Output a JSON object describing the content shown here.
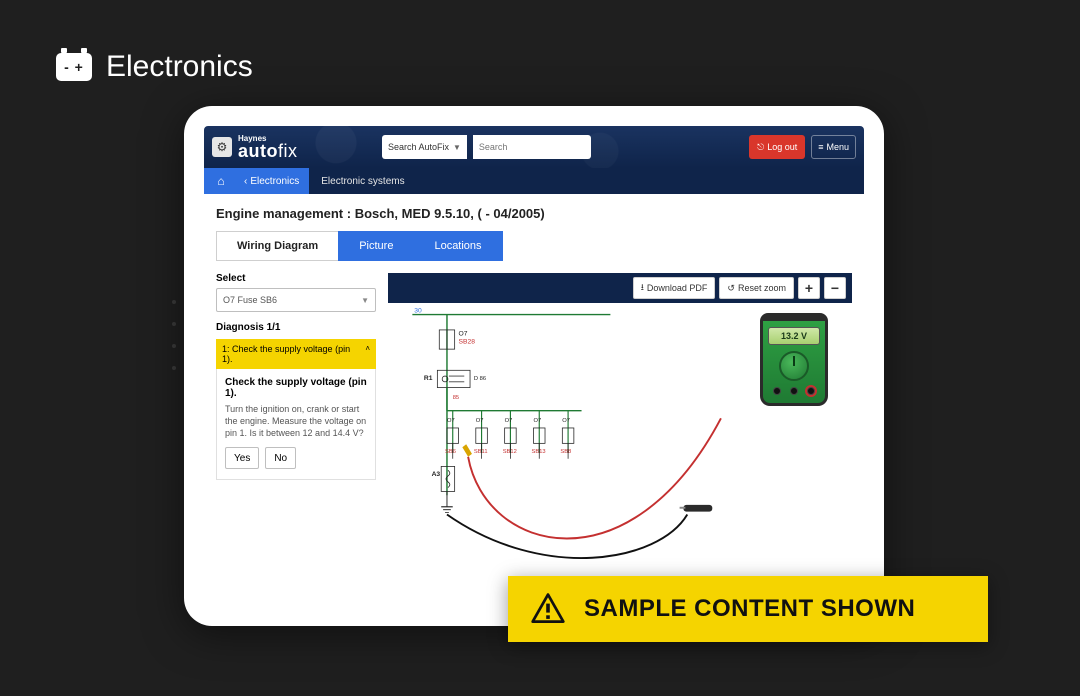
{
  "category": {
    "label": "Electronics",
    "icon_text": "- +"
  },
  "app": {
    "brand_top": "Haynes",
    "brand_main_bold": "auto",
    "brand_main_light": "fix",
    "search_scope": "Search AutoFix",
    "search_placeholder": "Search",
    "logout_label": "Log out",
    "menu_label": "Menu"
  },
  "breadcrumb": {
    "back_label": "Electronics",
    "current": "Electronic systems"
  },
  "page": {
    "title": "Engine management :  Bosch, MED 9.5.10, ( - 04/2005)"
  },
  "tabs": {
    "wiring": "Wiring Diagram",
    "picture": "Picture",
    "locations": "Locations"
  },
  "left": {
    "select_label": "Select",
    "select_value": "O7  Fuse  SB6",
    "diagnosis_title": "Diagnosis 1/1",
    "step_header": "1: Check the supply voltage (pin 1).",
    "step_title": "Check the supply voltage (pin 1).",
    "step_body": "Turn the ignition on, crank or start the engine. Measure the voltage on pin 1. Is it between 12 and 14.4 V?",
    "yes": "Yes",
    "no": "No"
  },
  "toolbar": {
    "download": "Download PDF",
    "reset": "Reset zoom",
    "plus": "+",
    "minus": "−"
  },
  "multimeter": {
    "reading": "13.2 V"
  },
  "banner": {
    "text": "SAMPLE CONTENT SHOWN"
  },
  "diagram": {
    "colors": {
      "wire_green": "#1f7a33",
      "wire_black": "#222222",
      "fuse_label": "#c43030",
      "probe_red": "#c43030",
      "probe_black": "#111111"
    },
    "top_fuse": {
      "id": "O7",
      "code": "SB28"
    },
    "relay": "R1",
    "relay_pin": "D 86",
    "pin_below": "85",
    "ground_node": "A3",
    "bus_number": "30",
    "row_fuses": [
      {
        "id": "O7",
        "code": "SB6"
      },
      {
        "id": "O7",
        "code": "SB11"
      },
      {
        "id": "O7",
        "code": "SB12"
      },
      {
        "id": "O7",
        "code": "SB13"
      },
      {
        "id": "O7",
        "code": "SB8"
      }
    ]
  }
}
